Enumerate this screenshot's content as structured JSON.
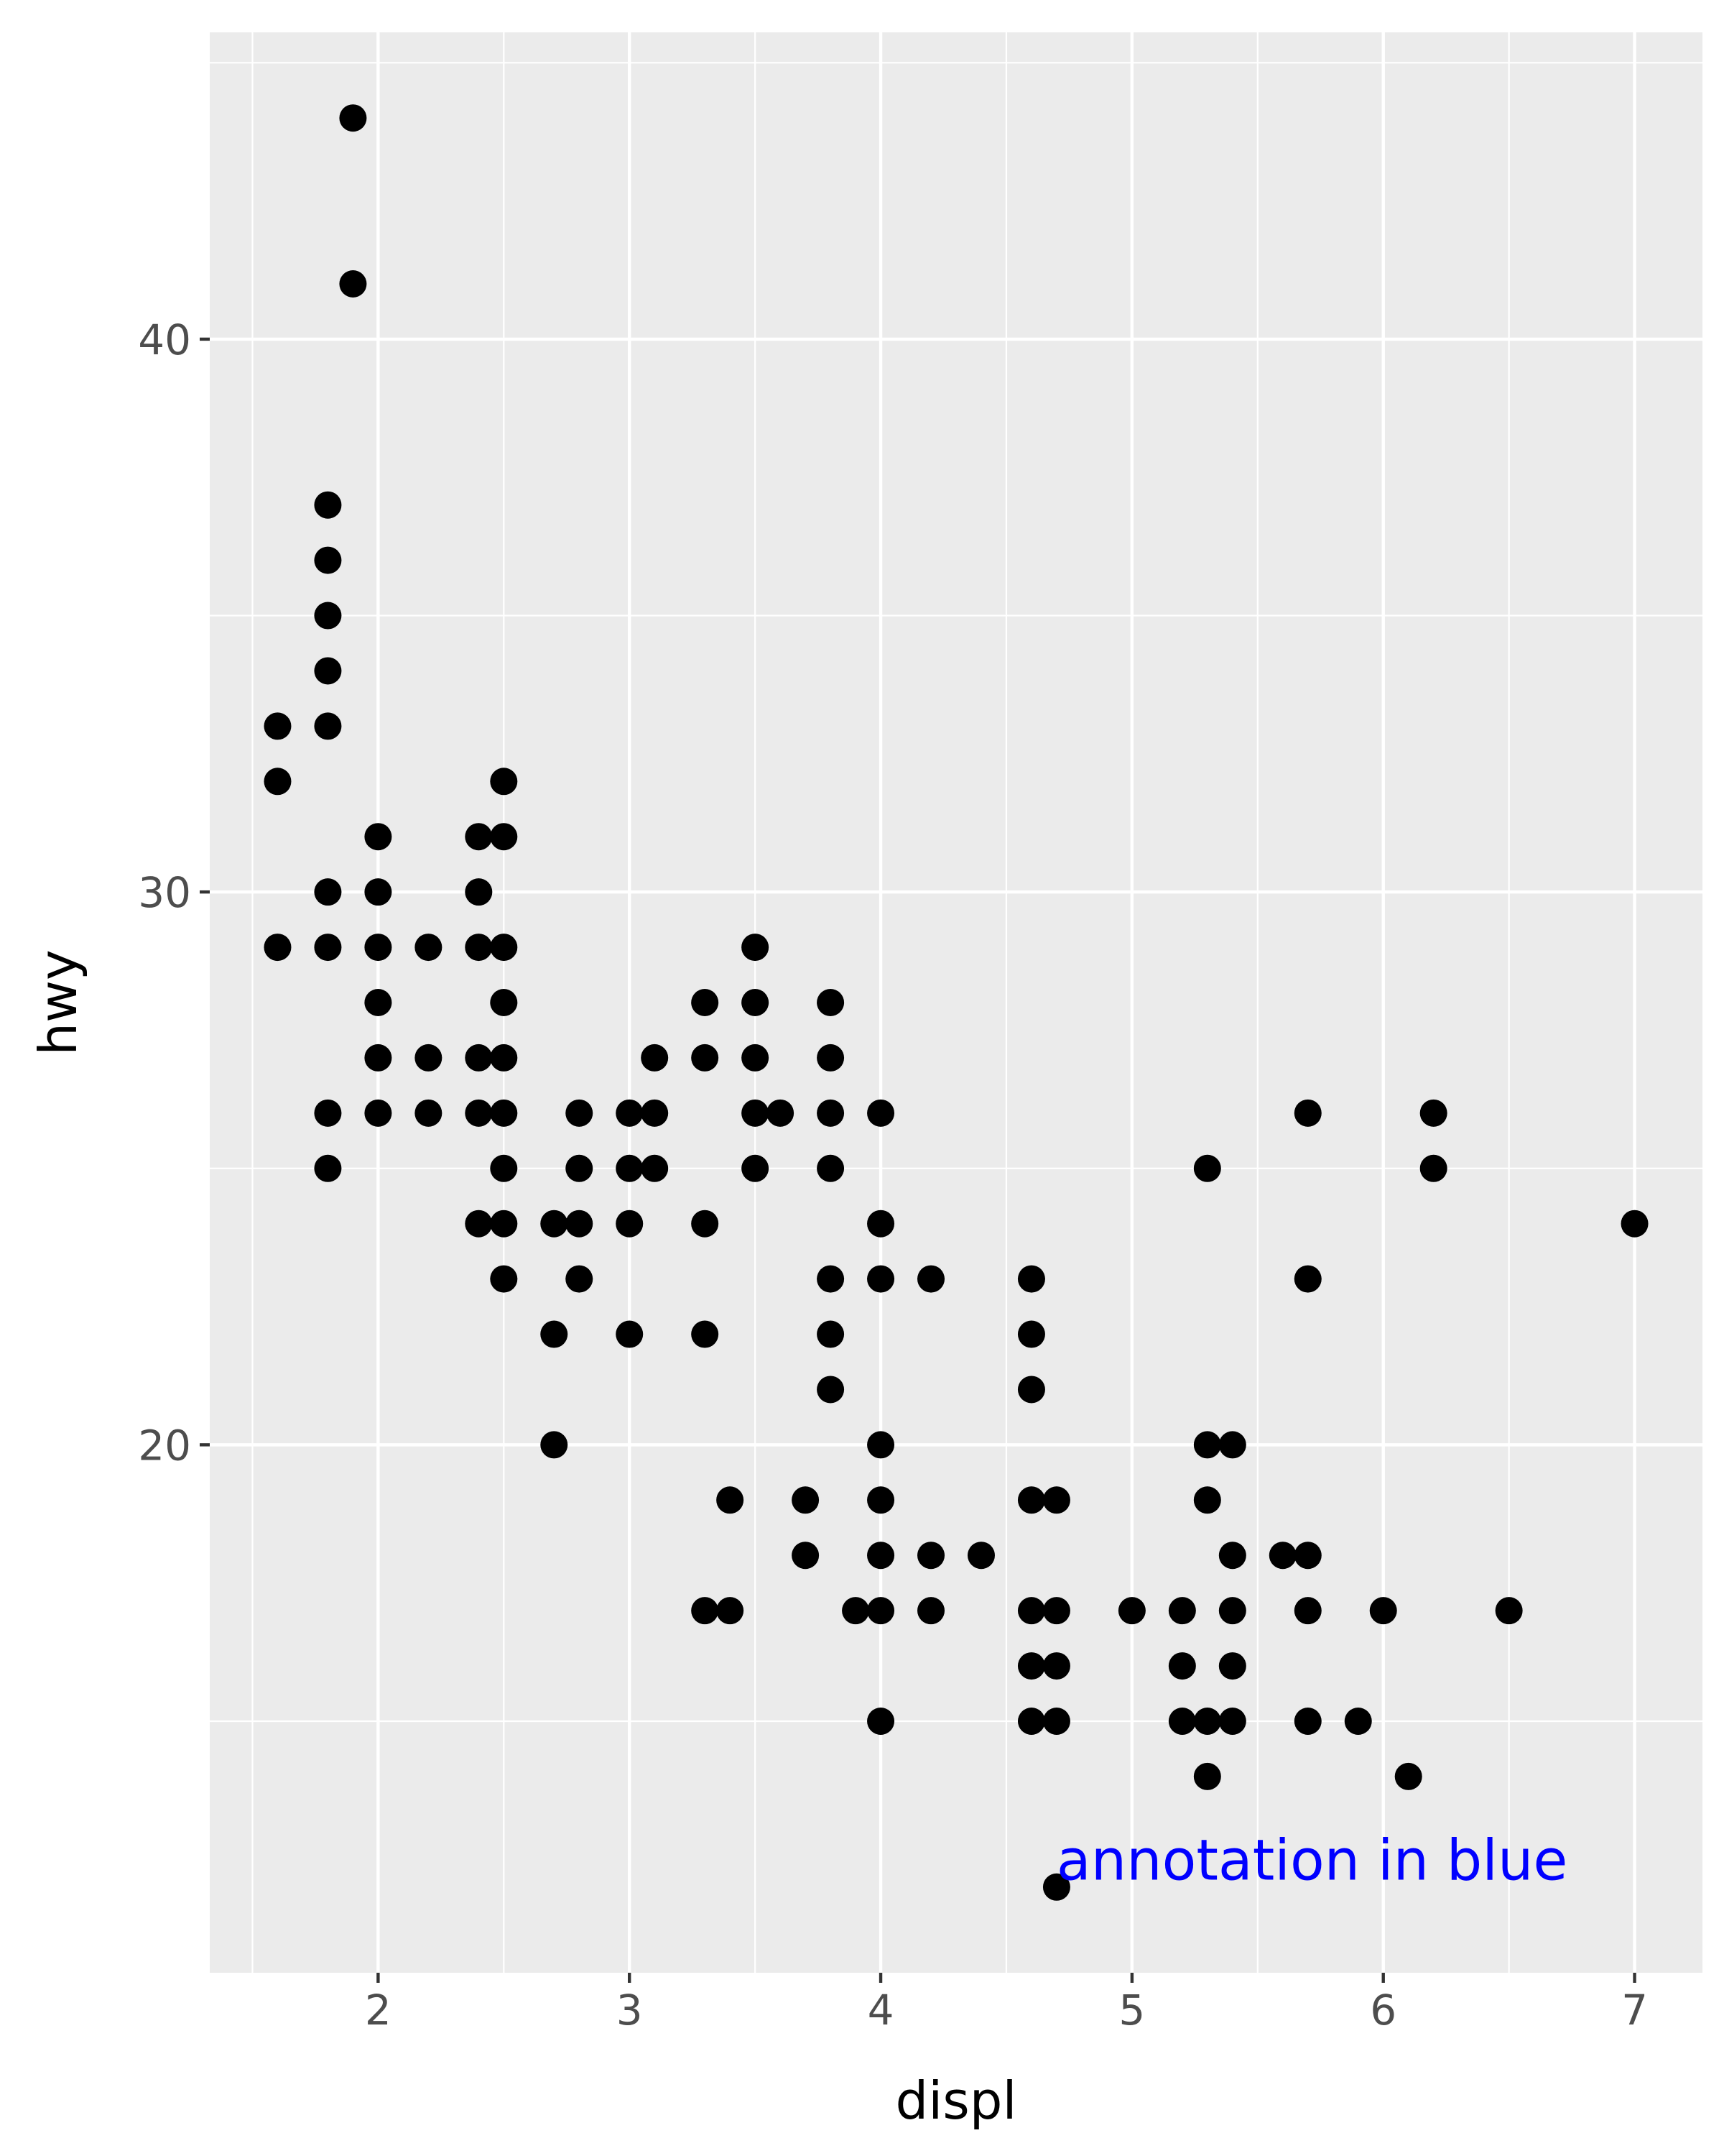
{
  "chart_data": {
    "type": "scatter",
    "title": "",
    "xlabel": "displ",
    "ylabel": "hwy",
    "xlim": [
      1.33,
      7.27
    ],
    "ylim": [
      10.45,
      45.55
    ],
    "x_ticks": [
      2,
      3,
      4,
      5,
      6,
      7
    ],
    "x_tick_labels": [
      "2",
      "3",
      "4",
      "5",
      "6",
      "7"
    ],
    "y_ticks": [
      20,
      30,
      40
    ],
    "y_tick_labels": [
      "20",
      "30",
      "40"
    ],
    "x_minor_ticks": [
      1.5,
      2.5,
      3.5,
      4.5,
      5.5,
      6.5
    ],
    "y_minor_ticks": [
      15,
      25,
      35,
      45
    ],
    "grid": true,
    "legend": "none",
    "point_color": "#000000",
    "panel_background": "#ebebeb",
    "grid_color": "#ffffff",
    "points": [
      [
        1.6,
        33
      ],
      [
        1.6,
        32
      ],
      [
        1.6,
        29
      ],
      [
        1.8,
        37
      ],
      [
        1.8,
        36
      ],
      [
        1.8,
        35
      ],
      [
        1.8,
        34
      ],
      [
        1.8,
        33
      ],
      [
        1.8,
        30
      ],
      [
        1.8,
        29
      ],
      [
        1.8,
        26
      ],
      [
        1.8,
        25
      ],
      [
        1.9,
        44
      ],
      [
        1.9,
        41
      ],
      [
        2.0,
        31
      ],
      [
        2.0,
        30
      ],
      [
        2.0,
        29
      ],
      [
        2.0,
        28
      ],
      [
        2.0,
        27
      ],
      [
        2.0,
        26
      ],
      [
        2.2,
        29
      ],
      [
        2.2,
        27
      ],
      [
        2.2,
        26
      ],
      [
        2.4,
        31
      ],
      [
        2.4,
        30
      ],
      [
        2.4,
        29
      ],
      [
        2.4,
        27
      ],
      [
        2.4,
        26
      ],
      [
        2.4,
        24
      ],
      [
        2.5,
        32
      ],
      [
        2.5,
        31
      ],
      [
        2.5,
        29
      ],
      [
        2.5,
        28
      ],
      [
        2.5,
        27
      ],
      [
        2.5,
        26
      ],
      [
        2.5,
        25
      ],
      [
        2.5,
        24
      ],
      [
        2.5,
        23
      ],
      [
        2.7,
        24
      ],
      [
        2.7,
        22
      ],
      [
        2.7,
        20
      ],
      [
        2.8,
        26
      ],
      [
        2.8,
        25
      ],
      [
        2.8,
        24
      ],
      [
        2.8,
        23
      ],
      [
        3.0,
        26
      ],
      [
        3.0,
        25
      ],
      [
        3.0,
        24
      ],
      [
        3.0,
        22
      ],
      [
        3.1,
        27
      ],
      [
        3.1,
        26
      ],
      [
        3.1,
        25
      ],
      [
        3.3,
        28
      ],
      [
        3.3,
        27
      ],
      [
        3.3,
        24
      ],
      [
        3.3,
        22
      ],
      [
        3.3,
        17
      ],
      [
        3.4,
        19
      ],
      [
        3.4,
        17
      ],
      [
        3.5,
        29
      ],
      [
        3.5,
        28
      ],
      [
        3.5,
        27
      ],
      [
        3.5,
        26
      ],
      [
        3.5,
        25
      ],
      [
        3.6,
        26
      ],
      [
        3.7,
        19
      ],
      [
        3.7,
        18
      ],
      [
        3.8,
        28
      ],
      [
        3.8,
        27
      ],
      [
        3.8,
        26
      ],
      [
        3.8,
        25
      ],
      [
        3.8,
        23
      ],
      [
        3.8,
        22
      ],
      [
        3.8,
        21
      ],
      [
        3.9,
        17
      ],
      [
        4.0,
        26
      ],
      [
        4.0,
        24
      ],
      [
        4.0,
        23
      ],
      [
        4.0,
        20
      ],
      [
        4.0,
        19
      ],
      [
        4.0,
        18
      ],
      [
        4.0,
        17
      ],
      [
        4.0,
        15
      ],
      [
        4.2,
        23
      ],
      [
        4.2,
        18
      ],
      [
        4.2,
        17
      ],
      [
        4.4,
        18
      ],
      [
        4.6,
        23
      ],
      [
        4.6,
        22
      ],
      [
        4.6,
        21
      ],
      [
        4.6,
        19
      ],
      [
        4.6,
        17
      ],
      [
        4.6,
        16
      ],
      [
        4.6,
        15
      ],
      [
        4.7,
        19
      ],
      [
        4.7,
        17
      ],
      [
        4.7,
        16
      ],
      [
        4.7,
        15
      ],
      [
        4.7,
        12
      ],
      [
        5.0,
        17
      ],
      [
        5.2,
        17
      ],
      [
        5.2,
        16
      ],
      [
        5.2,
        15
      ],
      [
        5.3,
        25
      ],
      [
        5.3,
        20
      ],
      [
        5.3,
        19
      ],
      [
        5.3,
        15
      ],
      [
        5.3,
        14
      ],
      [
        5.4,
        20
      ],
      [
        5.4,
        18
      ],
      [
        5.4,
        17
      ],
      [
        5.4,
        16
      ],
      [
        5.4,
        15
      ],
      [
        5.6,
        18
      ],
      [
        5.7,
        26
      ],
      [
        5.7,
        23
      ],
      [
        5.7,
        18
      ],
      [
        5.7,
        17
      ],
      [
        5.7,
        15
      ],
      [
        5.9,
        15
      ],
      [
        6.0,
        17
      ],
      [
        6.1,
        14
      ],
      [
        6.2,
        26
      ],
      [
        6.2,
        25
      ],
      [
        6.5,
        17
      ],
      [
        7.0,
        24
      ]
    ],
    "annotations": [
      {
        "text": "annotation in blue",
        "x": 4.7,
        "y": 12.5,
        "color": "#0000ff"
      }
    ]
  }
}
